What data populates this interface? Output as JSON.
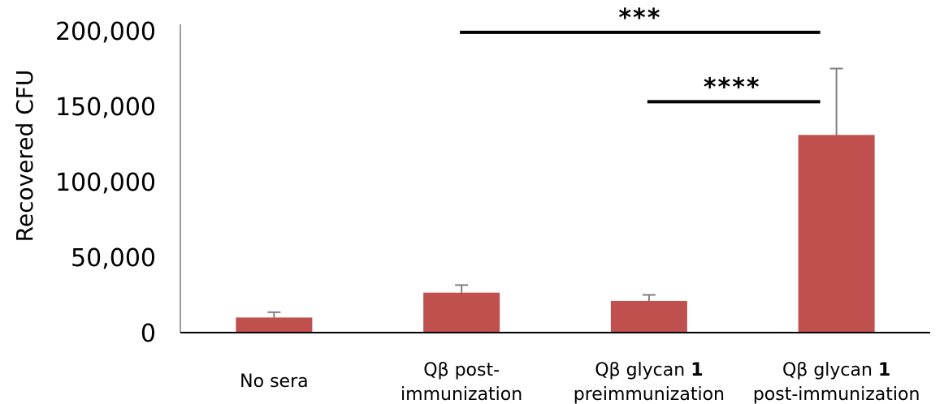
{
  "chart_data": {
    "type": "bar",
    "ylabel": "Recovered CFU",
    "ylim": [
      0,
      200000
    ],
    "yticks": [
      0,
      50000,
      100000,
      150000,
      200000
    ],
    "ytick_labels": [
      "0",
      "50,000",
      "100,000",
      "150,000",
      "200,000"
    ],
    "bar_color": "#C0504D",
    "error_color": "#7F7F7F",
    "categories": [
      [
        "No sera"
      ],
      [
        "Qβ post-",
        "immunization"
      ],
      [
        "Qβ glycan 1",
        "preimmunization"
      ],
      [
        "Qβ glycan 1",
        "post-immunization"
      ]
    ],
    "values": [
      10000,
      26500,
      21000,
      131000
    ],
    "errors": [
      3500,
      5000,
      4000,
      44000
    ],
    "significance": [
      {
        "from": 1,
        "to": 3,
        "label": "***",
        "y": 199000
      },
      {
        "from": 2,
        "to": 3,
        "label": "****",
        "y": 153000
      }
    ]
  }
}
